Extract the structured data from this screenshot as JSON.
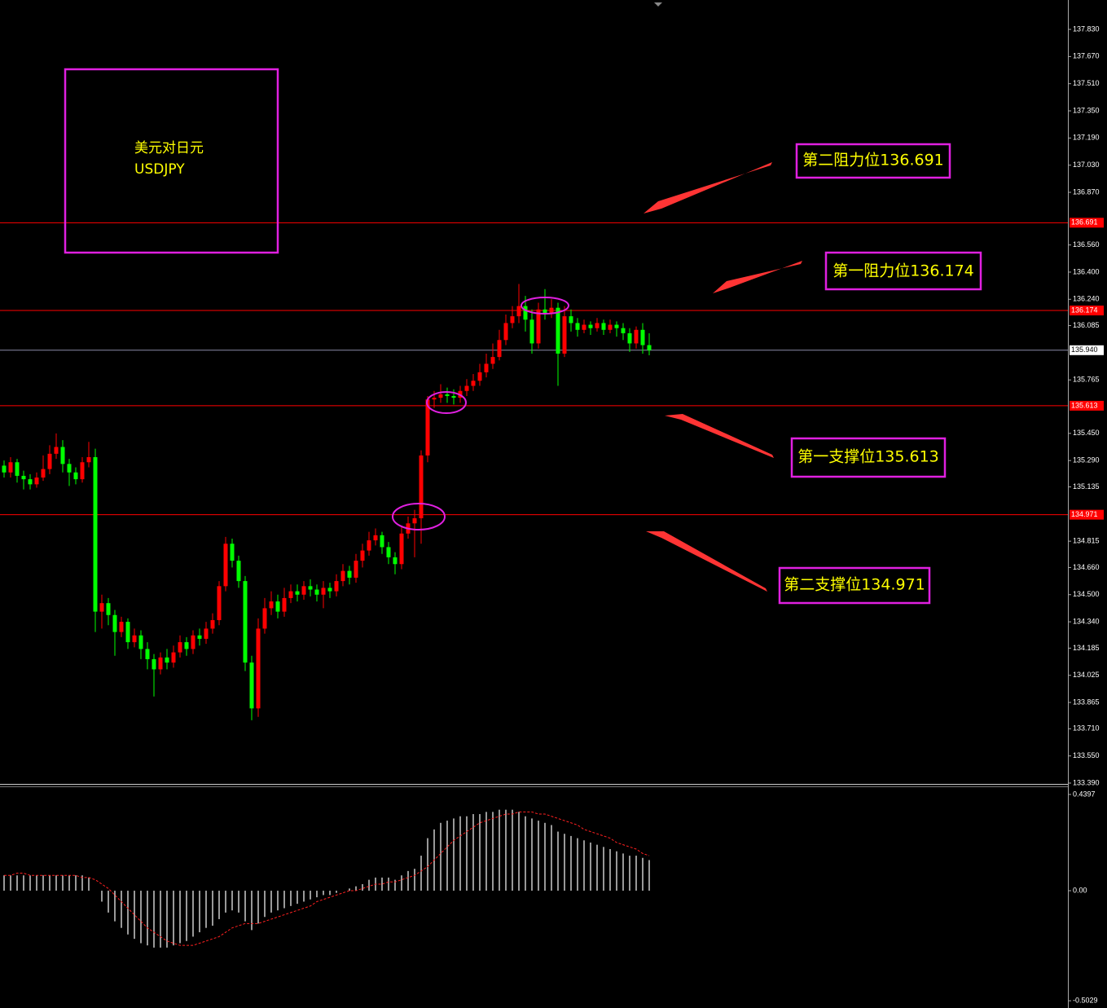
{
  "chart_data": [
    {
      "type": "candlestick",
      "title": "美元对日元",
      "subtitle": "USDJPY",
      "annotations": [
        "第二阻力位136.691",
        "第一阻力位136.174",
        "第一支撑位135.613",
        "第二支撑位134.971"
      ],
      "up_color": "#ff0000",
      "down_color": "#00ff00",
      "level_color": "#ff0000",
      "last_price_color": "#8a8aa8",
      "ylim": [
        133.39,
        138.003
      ],
      "yticks": [
        {
          "value": 137.83,
          "label": "137.830"
        },
        {
          "value": 137.67,
          "label": "137.670"
        },
        {
          "value": 137.51,
          "label": "137.510"
        },
        {
          "value": 137.35,
          "label": "137.350"
        },
        {
          "value": 137.19,
          "label": "137.190"
        },
        {
          "value": 137.03,
          "label": "137.030"
        },
        {
          "value": 136.87,
          "label": "136.870"
        },
        {
          "value": 136.56,
          "label": "136.560"
        },
        {
          "value": 136.4,
          "label": "136.400"
        },
        {
          "value": 136.24,
          "label": "136.240"
        },
        136.085,
        {
          "value": 135.765,
          "label": "135.765"
        },
        {
          "value": 135.45,
          "label": "135.450"
        },
        {
          "value": 135.29,
          "label": "135.290"
        },
        135.135,
        {
          "value": 134.815,
          "label": "134.815"
        },
        {
          "value": 134.66,
          "label": "134.660"
        },
        {
          "value": 134.5,
          "label": "134.500"
        },
        {
          "value": 134.34,
          "label": "134.340"
        },
        134.185,
        {
          "value": 134.025,
          "label": "134.025"
        },
        133.865,
        {
          "value": 133.71,
          "label": "133.710"
        },
        {
          "value": 133.55,
          "label": "133.550"
        },
        {
          "value": 133.39,
          "label": "133.390"
        }
      ],
      "levels": [
        136.691,
        136.174,
        135.613,
        134.971
      ],
      "last_price": {
        "value": 135.94,
        "label": "135.940"
      },
      "open": [
        135.26,
        135.22,
        135.28,
        135.2,
        135.18,
        135.15,
        135.19,
        135.24,
        135.33,
        135.37,
        135.27,
        135.22,
        135.18,
        135.28,
        135.31,
        134.4,
        134.45,
        134.38,
        134.28,
        134.34,
        134.22,
        134.26,
        134.18,
        134.12,
        134.06,
        134.13,
        134.1,
        134.16,
        134.22,
        134.18,
        134.26,
        134.24,
        134.3,
        134.35,
        134.55,
        134.8,
        134.7,
        134.58,
        134.1,
        133.83,
        134.3,
        134.42,
        134.46,
        134.4,
        134.48,
        134.52,
        134.5,
        134.55,
        134.53,
        134.5,
        134.54,
        134.52,
        134.58,
        134.64,
        134.6,
        134.7,
        134.76,
        134.82,
        134.85,
        134.78,
        134.72,
        134.68,
        134.86,
        134.92,
        134.95,
        135.32,
        135.65,
        135.66,
        135.68,
        135.67,
        135.66,
        135.7,
        135.73,
        135.76,
        135.81,
        135.86,
        135.9,
        136.0,
        136.1,
        136.14,
        136.2,
        136.12,
        135.98,
        136.18,
        136.16,
        136.19,
        135.92,
        136.14,
        136.1,
        136.06,
        136.09,
        136.07,
        136.1,
        136.06,
        136.09,
        136.07,
        136.04,
        135.98,
        136.06,
        135.97
      ],
      "high": [
        135.29,
        135.31,
        135.3,
        135.23,
        135.21,
        135.22,
        135.32,
        135.38,
        135.45,
        135.41,
        135.3,
        135.25,
        135.31,
        135.4,
        135.36,
        134.5,
        134.48,
        134.41,
        134.37,
        134.36,
        134.3,
        134.29,
        134.22,
        134.15,
        134.16,
        134.18,
        134.2,
        134.26,
        134.25,
        134.29,
        134.3,
        134.34,
        134.39,
        134.58,
        134.84,
        134.83,
        134.73,
        134.61,
        134.14,
        134.36,
        134.48,
        134.52,
        134.5,
        134.54,
        134.56,
        134.56,
        134.58,
        134.59,
        134.56,
        134.58,
        134.57,
        134.62,
        134.68,
        134.67,
        134.74,
        134.8,
        134.87,
        134.89,
        134.87,
        134.81,
        134.75,
        134.9,
        134.96,
        135.0,
        135.35,
        135.67,
        135.7,
        135.74,
        135.72,
        135.71,
        135.73,
        135.77,
        135.8,
        135.86,
        135.92,
        135.98,
        136.06,
        136.15,
        136.2,
        136.33,
        136.26,
        136.18,
        136.22,
        136.3,
        136.24,
        136.22,
        136.2,
        136.18,
        136.13,
        136.12,
        136.11,
        136.13,
        136.12,
        136.12,
        136.11,
        136.1,
        136.07,
        136.08,
        136.1,
        136.04
      ],
      "low": [
        135.19,
        135.19,
        135.16,
        135.12,
        135.12,
        135.13,
        135.17,
        135.21,
        135.3,
        135.22,
        135.14,
        135.15,
        135.16,
        135.25,
        134.28,
        134.3,
        134.32,
        134.14,
        134.25,
        134.18,
        134.19,
        134.12,
        134.06,
        133.9,
        134.03,
        134.06,
        134.07,
        134.13,
        134.14,
        134.15,
        134.2,
        134.21,
        134.27,
        134.32,
        134.52,
        134.66,
        134.54,
        134.05,
        133.76,
        133.78,
        134.27,
        134.38,
        134.36,
        134.37,
        134.45,
        134.46,
        134.47,
        134.49,
        134.46,
        134.42,
        134.48,
        134.49,
        134.55,
        134.56,
        134.57,
        134.66,
        134.73,
        134.79,
        134.74,
        134.68,
        134.62,
        134.65,
        134.83,
        134.72,
        134.8,
        135.28,
        135.6,
        135.63,
        135.63,
        135.62,
        135.63,
        135.67,
        135.7,
        135.73,
        135.78,
        135.83,
        135.88,
        135.97,
        136.07,
        136.1,
        136.05,
        135.92,
        135.95,
        136.12,
        136.13,
        135.73,
        135.9,
        136.05,
        136.02,
        136.04,
        136.03,
        136.05,
        136.03,
        136.04,
        136.02,
        136.0,
        135.93,
        135.95,
        135.92,
        135.91
      ],
      "close": [
        135.22,
        135.28,
        135.2,
        135.18,
        135.15,
        135.19,
        135.24,
        135.33,
        135.37,
        135.27,
        135.22,
        135.18,
        135.28,
        135.31,
        134.4,
        134.45,
        134.38,
        134.28,
        134.34,
        134.22,
        134.26,
        134.18,
        134.12,
        134.06,
        134.13,
        134.1,
        134.16,
        134.22,
        134.18,
        134.26,
        134.24,
        134.3,
        134.35,
        134.55,
        134.8,
        134.7,
        134.58,
        134.1,
        133.83,
        134.3,
        134.42,
        134.46,
        134.4,
        134.48,
        134.52,
        134.5,
        134.55,
        134.53,
        134.5,
        134.54,
        134.52,
        134.58,
        134.64,
        134.6,
        134.7,
        134.76,
        134.82,
        134.85,
        134.78,
        134.72,
        134.68,
        134.86,
        134.92,
        134.95,
        135.32,
        135.65,
        135.66,
        135.68,
        135.67,
        135.66,
        135.7,
        135.73,
        135.76,
        135.81,
        135.86,
        135.9,
        136.0,
        136.1,
        136.14,
        136.2,
        136.12,
        135.98,
        136.18,
        136.16,
        136.19,
        135.92,
        136.14,
        136.1,
        136.06,
        136.09,
        136.07,
        136.1,
        136.06,
        136.09,
        136.07,
        136.04,
        135.98,
        136.06,
        135.97,
        135.94
      ]
    },
    {
      "type": "macd",
      "hist_color": "#ffffff",
      "signal_color": "#ff2020",
      "ylim": [
        -0.536,
        0.473
      ],
      "yticks": [
        0.4397,
        {
          "value": 0,
          "label": "0.00"
        },
        -0.5029
      ],
      "histogram": [
        0.07,
        0.07,
        0.07,
        0.07,
        0.07,
        0.07,
        0.07,
        0.07,
        0.07,
        0.07,
        0.07,
        0.07,
        0.07,
        0.06,
        0.0,
        -0.05,
        -0.1,
        -0.14,
        -0.17,
        -0.2,
        -0.22,
        -0.24,
        -0.25,
        -0.26,
        -0.26,
        -0.26,
        -0.25,
        -0.24,
        -0.23,
        -0.21,
        -0.19,
        -0.17,
        -0.16,
        -0.13,
        -0.1,
        -0.09,
        -0.1,
        -0.14,
        -0.18,
        -0.15,
        -0.12,
        -0.1,
        -0.09,
        -0.08,
        -0.07,
        -0.06,
        -0.05,
        -0.04,
        -0.03,
        -0.02,
        -0.02,
        -0.01,
        0.0,
        0.01,
        0.02,
        0.03,
        0.05,
        0.06,
        0.06,
        0.06,
        0.05,
        0.07,
        0.09,
        0.1,
        0.16,
        0.24,
        0.28,
        0.31,
        0.32,
        0.33,
        0.34,
        0.34,
        0.35,
        0.35,
        0.36,
        0.36,
        0.37,
        0.37,
        0.37,
        0.36,
        0.34,
        0.33,
        0.32,
        0.31,
        0.3,
        0.27,
        0.26,
        0.25,
        0.24,
        0.23,
        0.22,
        0.21,
        0.2,
        0.19,
        0.18,
        0.17,
        0.16,
        0.16,
        0.15,
        0.14
      ],
      "signal": [
        0.07,
        0.07,
        0.08,
        0.08,
        0.07,
        0.07,
        0.07,
        0.07,
        0.07,
        0.07,
        0.07,
        0.07,
        0.06,
        0.06,
        0.05,
        0.03,
        0.01,
        -0.02,
        -0.05,
        -0.08,
        -0.11,
        -0.14,
        -0.17,
        -0.19,
        -0.21,
        -0.23,
        -0.24,
        -0.25,
        -0.25,
        -0.25,
        -0.24,
        -0.23,
        -0.22,
        -0.21,
        -0.19,
        -0.17,
        -0.16,
        -0.15,
        -0.15,
        -0.15,
        -0.14,
        -0.13,
        -0.12,
        -0.11,
        -0.1,
        -0.09,
        -0.08,
        -0.07,
        -0.05,
        -0.04,
        -0.03,
        -0.02,
        -0.01,
        0.0,
        0.0,
        0.01,
        0.02,
        0.03,
        0.03,
        0.04,
        0.04,
        0.05,
        0.06,
        0.07,
        0.09,
        0.11,
        0.14,
        0.17,
        0.2,
        0.23,
        0.25,
        0.27,
        0.29,
        0.31,
        0.32,
        0.33,
        0.34,
        0.35,
        0.35,
        0.36,
        0.36,
        0.36,
        0.35,
        0.35,
        0.34,
        0.33,
        0.32,
        0.31,
        0.3,
        0.28,
        0.27,
        0.26,
        0.25,
        0.24,
        0.22,
        0.21,
        0.2,
        0.19,
        0.17,
        0.16
      ]
    }
  ]
}
